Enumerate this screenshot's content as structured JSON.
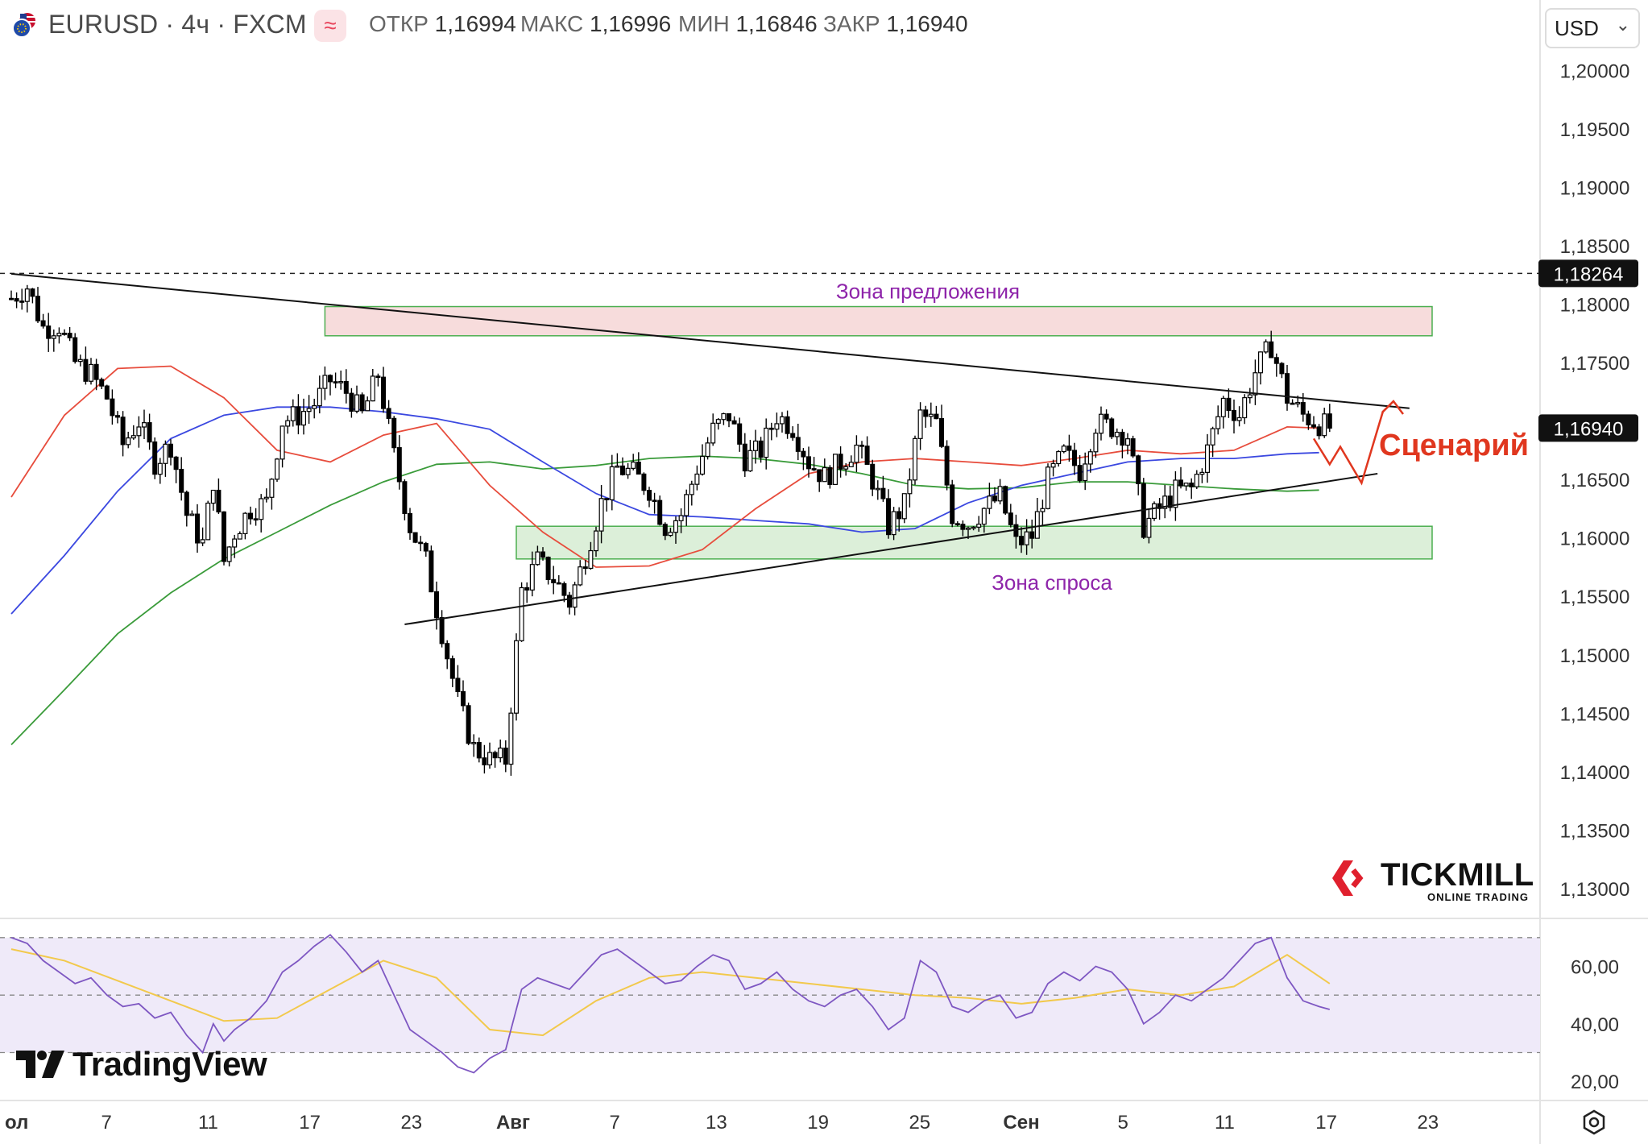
{
  "header": {
    "symbol": "EURUSD · 4ч · FXCM",
    "indicator_chip": "≈",
    "ohlc": [
      {
        "label": "ОТКР",
        "value": "1,16994"
      },
      {
        "label": "МАКС",
        "value": "1,16996"
      },
      {
        "label": "МИН",
        "value": "1,16846"
      },
      {
        "label": "ЗАКР",
        "value": "1,16940"
      }
    ],
    "currency": "USD",
    "currency_chevron": "⌄"
  },
  "annotations": {
    "supply_zone": "Зона предложения",
    "demand_zone": "Зона спроса",
    "scenario": "Сценарий"
  },
  "branding": {
    "tradingview": "TradingView",
    "tickmill": "TICKMILL",
    "tickmill_sub": "ONLINE TRADING"
  },
  "colors": {
    "up_candle": "#ffffff",
    "down_candle": "#000000",
    "ma_red": "#e74c3c",
    "ma_blue": "#3b48e0",
    "ma_green": "#3a9b3a",
    "supply_zone_fill": "#f7dcdc",
    "demand_zone_fill": "#dcefd9",
    "zone_border": "#4caf50",
    "rsi_line": "#7e57c2",
    "rsi_ma": "#f2c94c",
    "rsi_band": "#efeaf9",
    "scenario_arrow": "#e0371f",
    "annotation_text": "#8e24aa"
  },
  "chart_data": {
    "type": "candlestick",
    "price_axis": {
      "range": [
        1.1273,
        1.2019
      ],
      "ticks": [
        "1,20000",
        "1,19500",
        "1,19000",
        "1,18500",
        "1,18000",
        "1,17500",
        "1,17000",
        "1,16500",
        "1,16000",
        "1,15500",
        "1,15000",
        "1,14500",
        "1,14000",
        "1,13500",
        "1,13000"
      ],
      "tick_values": [
        1.2,
        1.195,
        1.19,
        1.185,
        1.18,
        1.175,
        1.17,
        1.165,
        1.16,
        1.155,
        1.15,
        1.145,
        1.14,
        1.135,
        1.13
      ],
      "level_label": "1,18264",
      "level_value": 1.18264,
      "last_price_label": "1,16940",
      "last_price": 1.1694
    },
    "time_axis": {
      "labels": [
        "ол",
        "7",
        "11",
        "17",
        "23",
        "Авг",
        "7",
        "13",
        "19",
        "25",
        "Сен",
        "5",
        "11",
        "17",
        "23"
      ]
    },
    "supply_zone": [
      1.1773,
      1.1798
    ],
    "demand_zone": [
      1.1582,
      1.161
    ],
    "price_path": [
      [
        0,
        1.1805
      ],
      [
        3,
        1.1815
      ],
      [
        6,
        1.178
      ],
      [
        9,
        1.1782
      ],
      [
        12,
        1.175
      ],
      [
        15,
        1.174
      ],
      [
        18,
        1.172
      ],
      [
        21,
        1.168
      ],
      [
        24,
        1.17
      ],
      [
        27,
        1.1665
      ],
      [
        30,
        1.168
      ],
      [
        33,
        1.162
      ],
      [
        36,
        1.1595
      ],
      [
        38,
        1.165
      ],
      [
        40,
        1.158
      ],
      [
        42,
        1.1605
      ],
      [
        45,
        1.1625
      ],
      [
        48,
        1.163
      ],
      [
        51,
        1.17
      ],
      [
        54,
        1.1705
      ],
      [
        57,
        1.1715
      ],
      [
        60,
        1.1735
      ],
      [
        63,
        1.1725
      ],
      [
        66,
        1.1705
      ],
      [
        69,
        1.174
      ],
      [
        72,
        1.167
      ],
      [
        75,
        1.161
      ],
      [
        78,
        1.158
      ],
      [
        81,
        1.152
      ],
      [
        84,
        1.146
      ],
      [
        87,
        1.142
      ],
      [
        90,
        1.141
      ],
      [
        93,
        1.141
      ],
      [
        96,
        1.1555
      ],
      [
        99,
        1.158
      ],
      [
        102,
        1.1565
      ],
      [
        105,
        1.1545
      ],
      [
        108,
        1.1585
      ],
      [
        111,
        1.163
      ],
      [
        114,
        1.166
      ],
      [
        117,
        1.1655
      ],
      [
        120,
        1.1642
      ],
      [
        123,
        1.161
      ],
      [
        126,
        1.162
      ],
      [
        129,
        1.166
      ],
      [
        132,
        1.1692
      ],
      [
        135,
        1.1705
      ],
      [
        138,
        1.1668
      ],
      [
        141,
        1.1675
      ],
      [
        144,
        1.1705
      ],
      [
        147,
        1.1695
      ],
      [
        150,
        1.1665
      ],
      [
        153,
        1.1652
      ],
      [
        156,
        1.1665
      ],
      [
        159,
        1.1678
      ],
      [
        162,
        1.165
      ],
      [
        165,
        1.161
      ],
      [
        168,
        1.1628
      ],
      [
        171,
        1.1705
      ],
      [
        174,
        1.1698
      ],
      [
        177,
        1.162
      ],
      [
        180,
        1.1612
      ],
      [
        183,
        1.1625
      ],
      [
        186,
        1.1635
      ],
      [
        189,
        1.1595
      ],
      [
        192,
        1.1602
      ],
      [
        195,
        1.165
      ],
      [
        198,
        1.1672
      ],
      [
        201,
        1.1658
      ],
      [
        204,
        1.1698
      ],
      [
        207,
        1.1695
      ],
      [
        210,
        1.1688
      ],
      [
        213,
        1.161
      ],
      [
        216,
        1.1625
      ],
      [
        219,
        1.164
      ],
      [
        222,
        1.1642
      ],
      [
        225,
        1.1675
      ],
      [
        228,
        1.1718
      ],
      [
        231,
        1.1705
      ],
      [
        234,
        1.1742
      ],
      [
        237,
        1.1765
      ],
      [
        240,
        1.172
      ],
      [
        243,
        1.1705
      ],
      [
        246,
        1.1698
      ],
      [
        248,
        1.1694
      ]
    ],
    "ma_red": [
      [
        0,
        1.1635
      ],
      [
        10,
        1.1705
      ],
      [
        20,
        1.1745
      ],
      [
        30,
        1.1747
      ],
      [
        40,
        1.172
      ],
      [
        50,
        1.1675
      ],
      [
        60,
        1.1665
      ],
      [
        70,
        1.1688
      ],
      [
        80,
        1.1698
      ],
      [
        90,
        1.1645
      ],
      [
        100,
        1.1605
      ],
      [
        110,
        1.1575
      ],
      [
        120,
        1.1576
      ],
      [
        130,
        1.159
      ],
      [
        140,
        1.1625
      ],
      [
        150,
        1.1655
      ],
      [
        160,
        1.1665
      ],
      [
        170,
        1.1668
      ],
      [
        180,
        1.1665
      ],
      [
        190,
        1.1662
      ],
      [
        200,
        1.1668
      ],
      [
        210,
        1.1675
      ],
      [
        220,
        1.1672
      ],
      [
        230,
        1.1675
      ],
      [
        240,
        1.1695
      ],
      [
        246,
        1.1694
      ]
    ],
    "ma_blue": [
      [
        0,
        1.1535
      ],
      [
        10,
        1.1585
      ],
      [
        20,
        1.164
      ],
      [
        30,
        1.1685
      ],
      [
        40,
        1.1705
      ],
      [
        50,
        1.1712
      ],
      [
        60,
        1.1712
      ],
      [
        70,
        1.1708
      ],
      [
        80,
        1.1702
      ],
      [
        90,
        1.1693
      ],
      [
        100,
        1.1665
      ],
      [
        110,
        1.1638
      ],
      [
        120,
        1.162
      ],
      [
        130,
        1.1618
      ],
      [
        140,
        1.1615
      ],
      [
        150,
        1.1612
      ],
      [
        160,
        1.1605
      ],
      [
        170,
        1.1608
      ],
      [
        180,
        1.163
      ],
      [
        190,
        1.1645
      ],
      [
        200,
        1.1655
      ],
      [
        210,
        1.1665
      ],
      [
        220,
        1.1668
      ],
      [
        230,
        1.1668
      ],
      [
        240,
        1.1672
      ],
      [
        246,
        1.1673
      ]
    ],
    "ma_green": [
      [
        0,
        1.1423
      ],
      [
        10,
        1.147
      ],
      [
        20,
        1.1518
      ],
      [
        30,
        1.1553
      ],
      [
        40,
        1.1582
      ],
      [
        50,
        1.1605
      ],
      [
        60,
        1.1628
      ],
      [
        70,
        1.1648
      ],
      [
        80,
        1.1663
      ],
      [
        90,
        1.1665
      ],
      [
        100,
        1.1659
      ],
      [
        110,
        1.1662
      ],
      [
        120,
        1.1668
      ],
      [
        130,
        1.167
      ],
      [
        140,
        1.1668
      ],
      [
        150,
        1.1663
      ],
      [
        160,
        1.1655
      ],
      [
        170,
        1.1645
      ],
      [
        180,
        1.1642
      ],
      [
        190,
        1.1643
      ],
      [
        200,
        1.1648
      ],
      [
        210,
        1.1648
      ],
      [
        220,
        1.1645
      ],
      [
        230,
        1.1642
      ],
      [
        240,
        1.164
      ],
      [
        246,
        1.1641
      ]
    ],
    "trendlines": [
      {
        "from": [
          0,
          1.1826
        ],
        "to": [
          263,
          1.1711
        ],
        "name": "resistance"
      },
      {
        "from": [
          74,
          1.1526
        ],
        "to": [
          257,
          1.1655
        ],
        "name": "support"
      }
    ],
    "scenario_path": [
      [
        245,
        1.1685
      ],
      [
        248,
        1.1663
      ],
      [
        250,
        1.1678
      ],
      [
        254,
        1.1647
      ],
      [
        258,
        1.1708
      ],
      [
        260,
        1.1717
      ]
    ],
    "rsi": {
      "range": [
        15,
        75
      ],
      "ticks": [
        "60,00",
        "40,00",
        "20,00"
      ],
      "tick_values": [
        60,
        40,
        20
      ],
      "band": [
        30,
        70
      ],
      "midline": 50,
      "values": [
        [
          0,
          70
        ],
        [
          3,
          68
        ],
        [
          6,
          62
        ],
        [
          9,
          58
        ],
        [
          12,
          54
        ],
        [
          15,
          56
        ],
        [
          18,
          50
        ],
        [
          21,
          46
        ],
        [
          24,
          47
        ],
        [
          27,
          42
        ],
        [
          30,
          44
        ],
        [
          33,
          36
        ],
        [
          36,
          30
        ],
        [
          38,
          40
        ],
        [
          40,
          34
        ],
        [
          42,
          38
        ],
        [
          45,
          42
        ],
        [
          48,
          48
        ],
        [
          51,
          58
        ],
        [
          54,
          62
        ],
        [
          57,
          67
        ],
        [
          60,
          71
        ],
        [
          63,
          65
        ],
        [
          66,
          58
        ],
        [
          69,
          62
        ],
        [
          72,
          50
        ],
        [
          75,
          38
        ],
        [
          78,
          34
        ],
        [
          81,
          30
        ],
        [
          84,
          25
        ],
        [
          87,
          23
        ],
        [
          90,
          28
        ],
        [
          93,
          31
        ],
        [
          96,
          52
        ],
        [
          99,
          56
        ],
        [
          102,
          54
        ],
        [
          105,
          52
        ],
        [
          108,
          58
        ],
        [
          111,
          64
        ],
        [
          114,
          66
        ],
        [
          117,
          62
        ],
        [
          120,
          58
        ],
        [
          123,
          54
        ],
        [
          126,
          55
        ],
        [
          129,
          60
        ],
        [
          132,
          64
        ],
        [
          135,
          62
        ],
        [
          138,
          52
        ],
        [
          141,
          54
        ],
        [
          144,
          58
        ],
        [
          147,
          52
        ],
        [
          150,
          48
        ],
        [
          153,
          46
        ],
        [
          156,
          50
        ],
        [
          159,
          52
        ],
        [
          162,
          46
        ],
        [
          165,
          38
        ],
        [
          168,
          42
        ],
        [
          171,
          62
        ],
        [
          174,
          58
        ],
        [
          177,
          46
        ],
        [
          180,
          44
        ],
        [
          183,
          48
        ],
        [
          186,
          50
        ],
        [
          189,
          42
        ],
        [
          192,
          44
        ],
        [
          195,
          54
        ],
        [
          198,
          58
        ],
        [
          201,
          55
        ],
        [
          204,
          60
        ],
        [
          207,
          58
        ],
        [
          210,
          52
        ],
        [
          213,
          40
        ],
        [
          216,
          44
        ],
        [
          219,
          50
        ],
        [
          222,
          48
        ],
        [
          225,
          52
        ],
        [
          228,
          56
        ],
        [
          231,
          62
        ],
        [
          234,
          68
        ],
        [
          237,
          70
        ],
        [
          240,
          56
        ],
        [
          243,
          48
        ],
        [
          246,
          46
        ],
        [
          248,
          45
        ]
      ],
      "ma": [
        [
          0,
          66
        ],
        [
          10,
          62
        ],
        [
          20,
          55
        ],
        [
          30,
          48
        ],
        [
          40,
          41
        ],
        [
          50,
          42
        ],
        [
          60,
          52
        ],
        [
          70,
          62
        ],
        [
          80,
          56
        ],
        [
          90,
          38
        ],
        [
          100,
          36
        ],
        [
          110,
          48
        ],
        [
          120,
          56
        ],
        [
          130,
          58
        ],
        [
          140,
          56
        ],
        [
          150,
          54
        ],
        [
          160,
          52
        ],
        [
          170,
          50
        ],
        [
          180,
          49
        ],
        [
          190,
          47
        ],
        [
          200,
          49
        ],
        [
          210,
          52
        ],
        [
          220,
          50
        ],
        [
          230,
          53
        ],
        [
          240,
          64
        ],
        [
          248,
          54
        ]
      ]
    }
  }
}
